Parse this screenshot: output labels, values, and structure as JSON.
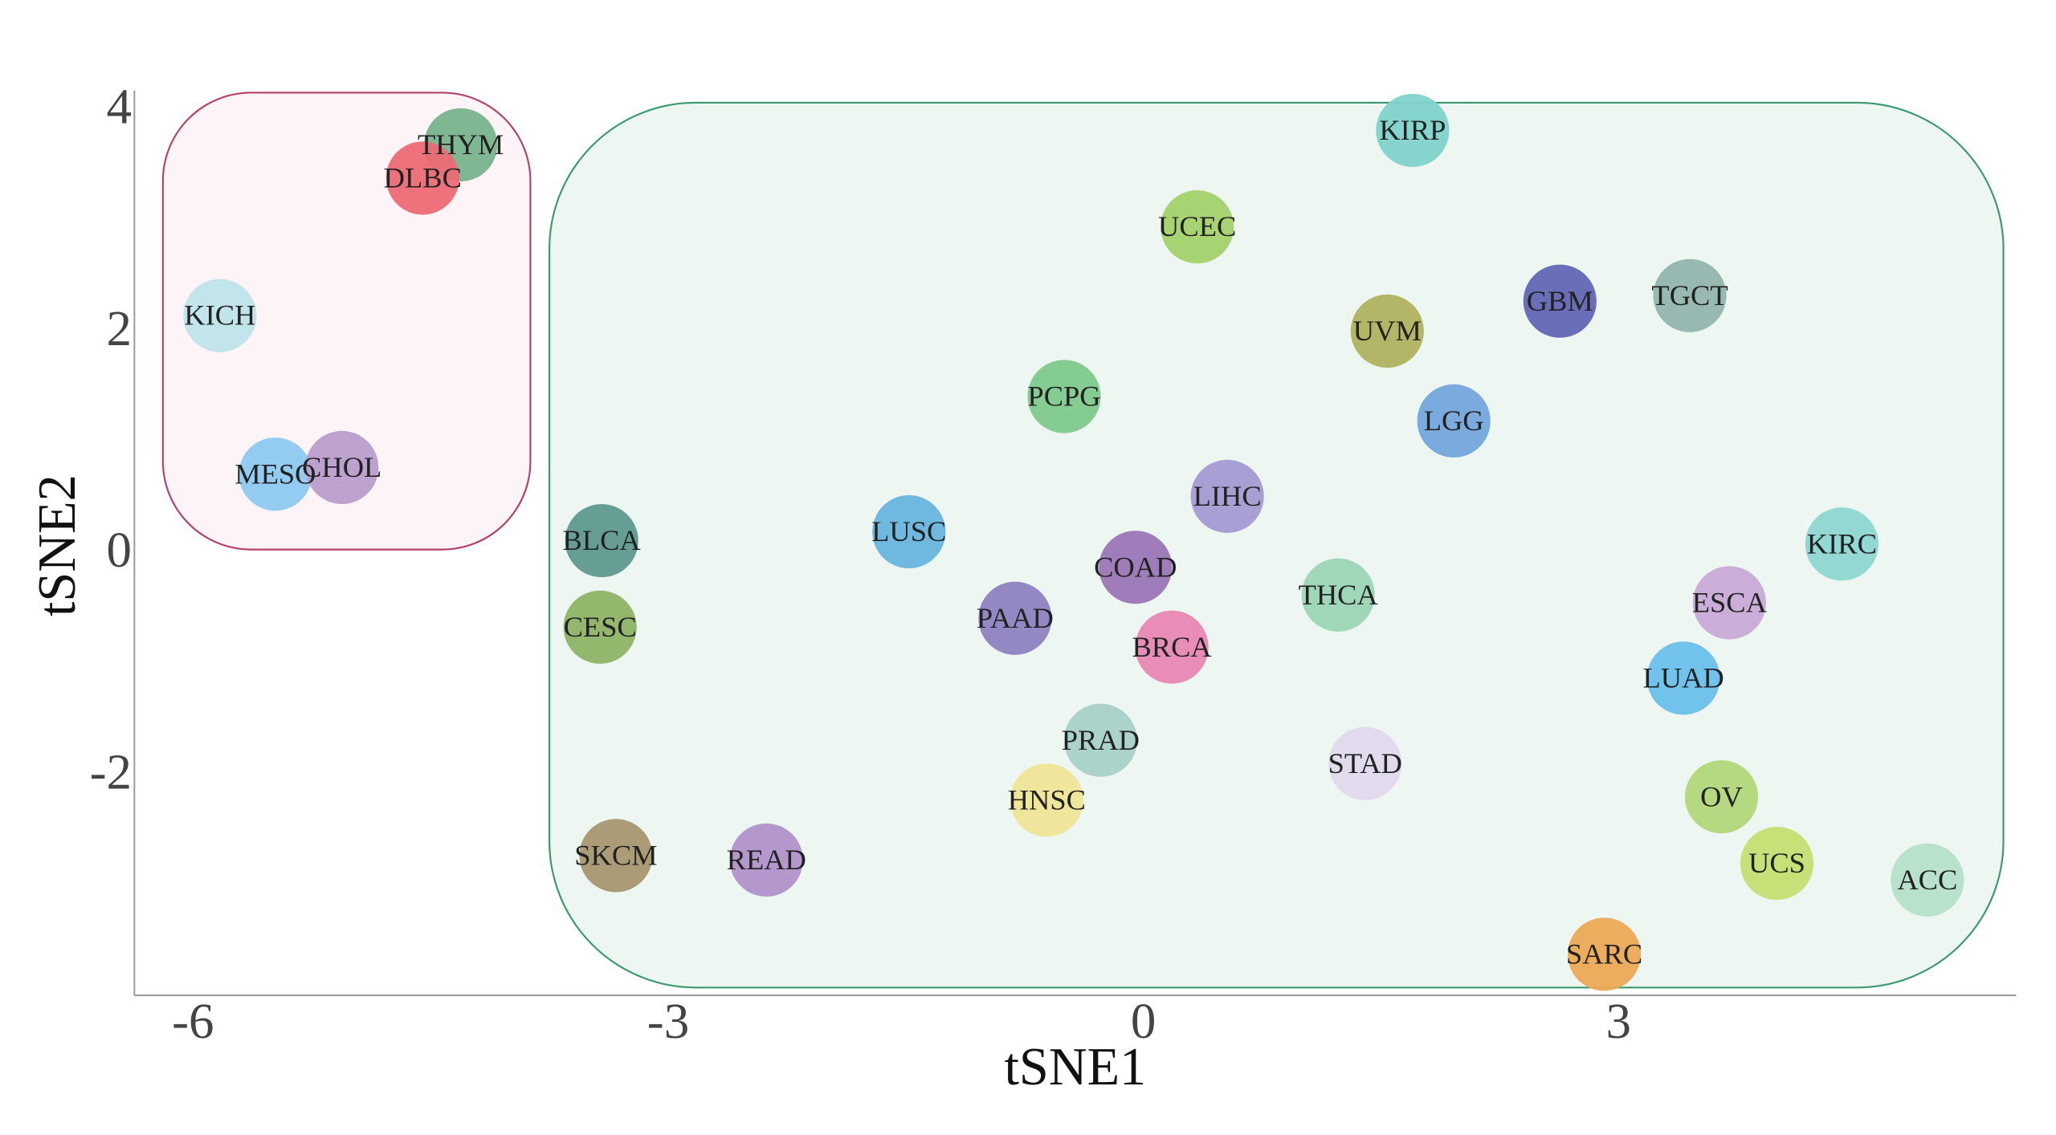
{
  "chart_data": {
    "type": "scatter",
    "title": "",
    "xlabel": "tSNE1",
    "ylabel": "tSNE2",
    "xlim": [
      -6.37,
      5.51
    ],
    "ylim": [
      -4.02,
      4.14
    ],
    "xticks": [
      -6,
      -3,
      0,
      3
    ],
    "yticks": [
      4,
      2,
      0,
      -2
    ],
    "xtick_labels": [
      "-6",
      "-3",
      "0",
      "3"
    ],
    "ytick_labels": [
      "4",
      "2",
      "0",
      "-2"
    ],
    "grid": false,
    "groups": [
      {
        "name": "cluster-1",
        "fill": "#fdf4f7",
        "stroke": "#b5416a",
        "xrange": [
          -6.19,
          -3.87
        ],
        "yrange": [
          0.0,
          4.12
        ]
      },
      {
        "name": "cluster-2",
        "fill": "#edf6f1",
        "stroke": "#3a9a6e",
        "xrange": [
          -3.75,
          5.43
        ],
        "yrange": [
          -3.95,
          4.03
        ]
      }
    ],
    "points": [
      {
        "label": "KIRP",
        "x": 1.7,
        "y": 3.78,
        "color": "#7fd3cb"
      },
      {
        "label": "UCEC",
        "x": 0.34,
        "y": 2.91,
        "color": "#a3d16a"
      },
      {
        "label": "THYM",
        "x": -4.31,
        "y": 3.65,
        "color": "#78b38d"
      },
      {
        "label": "DLBC",
        "x": -4.55,
        "y": 3.35,
        "color": "#ec6a75"
      },
      {
        "label": "KICH",
        "x": -5.83,
        "y": 2.11,
        "color": "#bfe3ea"
      },
      {
        "label": "GBM",
        "x": 2.63,
        "y": 2.24,
        "color": "#6266b4"
      },
      {
        "label": "TGCT",
        "x": 3.45,
        "y": 2.29,
        "color": "#93b5ad"
      },
      {
        "label": "UVM",
        "x": 1.54,
        "y": 1.97,
        "color": "#b0b25e"
      },
      {
        "label": "PCPG",
        "x": -0.5,
        "y": 1.38,
        "color": "#7fc98c"
      },
      {
        "label": "LGG",
        "x": 1.96,
        "y": 1.16,
        "color": "#75a5dc"
      },
      {
        "label": "MESO",
        "x": -5.48,
        "y": 0.68,
        "color": "#8ec8ef"
      },
      {
        "label": "CHOL",
        "x": -5.06,
        "y": 0.74,
        "color": "#b99dcc"
      },
      {
        "label": "LIHC",
        "x": 0.53,
        "y": 0.48,
        "color": "#a49bd2"
      },
      {
        "label": "BLCA",
        "x": -3.42,
        "y": 0.08,
        "color": "#5f9990"
      },
      {
        "label": "LUSC",
        "x": -1.48,
        "y": 0.16,
        "color": "#68b5de"
      },
      {
        "label": "KIRC",
        "x": 4.41,
        "y": 0.05,
        "color": "#8ed6d0"
      },
      {
        "label": "COAD",
        "x": -0.05,
        "y": -0.16,
        "color": "#9a76b6"
      },
      {
        "label": "THCA",
        "x": 1.23,
        "y": -0.41,
        "color": "#9bd5b4"
      },
      {
        "label": "ESCA",
        "x": 3.7,
        "y": -0.48,
        "color": "#c9aad6"
      },
      {
        "label": "CESC",
        "x": -3.43,
        "y": -0.7,
        "color": "#8db365"
      },
      {
        "label": "PAAD",
        "x": -0.81,
        "y": -0.62,
        "color": "#8e82c1"
      },
      {
        "label": "BRCA",
        "x": 0.18,
        "y": -0.88,
        "color": "#e887b4"
      },
      {
        "label": "LUAD",
        "x": 3.41,
        "y": -1.16,
        "color": "#6cc0ea"
      },
      {
        "label": "PRAD",
        "x": -0.27,
        "y": -1.72,
        "color": "#a9d0c9"
      },
      {
        "label": "STAD",
        "x": 1.4,
        "y": -1.93,
        "color": "#e2d8ec"
      },
      {
        "label": "HNSC",
        "x": -0.61,
        "y": -2.26,
        "color": "#efe596"
      },
      {
        "label": "OV",
        "x": 3.65,
        "y": -2.23,
        "color": "#b2d77a"
      },
      {
        "label": "SKCM",
        "x": -3.33,
        "y": -2.76,
        "color": "#a89770"
      },
      {
        "label": "READ",
        "x": -2.38,
        "y": -2.8,
        "color": "#b191c9"
      },
      {
        "label": "UCS",
        "x": 4.0,
        "y": -2.83,
        "color": "#c5df72"
      },
      {
        "label": "ACC",
        "x": 4.95,
        "y": -2.98,
        "color": "#b5e0c8"
      },
      {
        "label": "SARC",
        "x": 2.91,
        "y": -3.65,
        "color": "#eca955"
      }
    ]
  }
}
